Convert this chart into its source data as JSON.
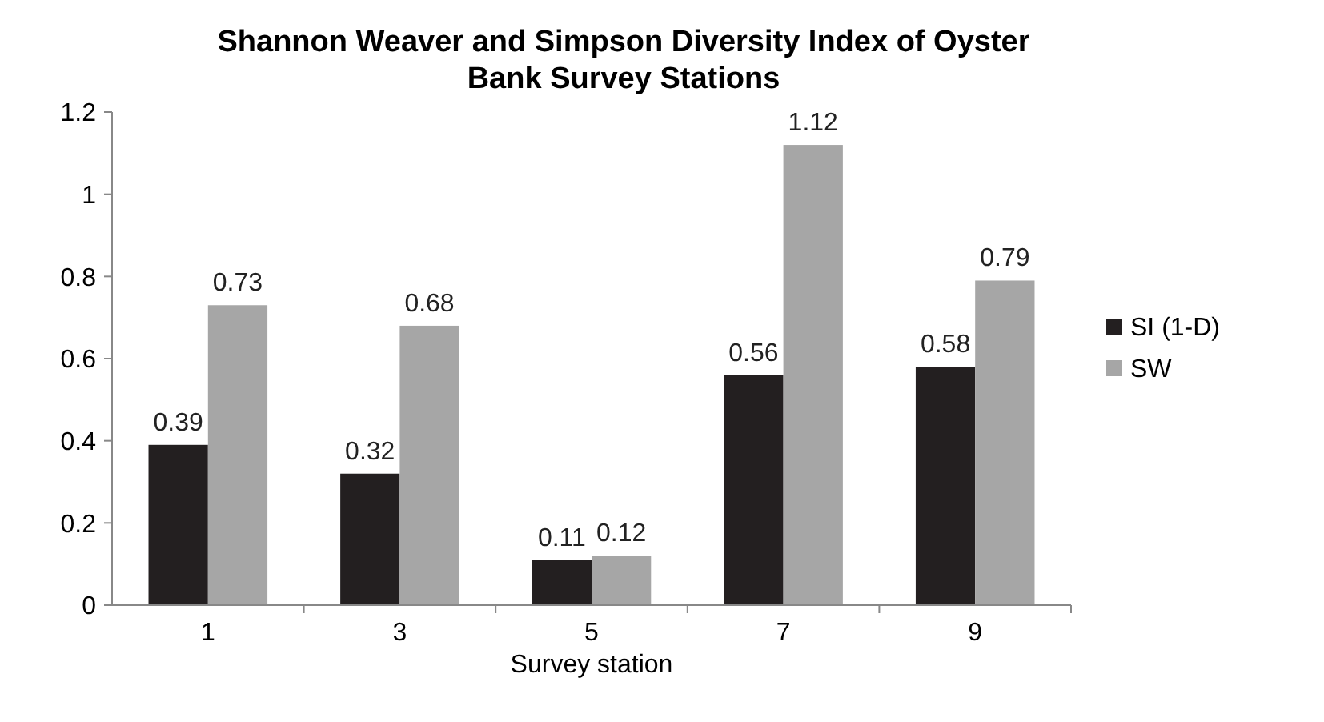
{
  "chart_data": {
    "type": "bar",
    "title": "Shannon Weaver and Simpson Diversity Index of Oyster Bank Survey Stations",
    "xlabel": "Survey station",
    "categories": [
      "1",
      "3",
      "5",
      "7",
      "9"
    ],
    "series": [
      {
        "name": "SI (1-D)",
        "color": "#231f20",
        "values": [
          0.39,
          0.32,
          0.11,
          0.56,
          0.58
        ]
      },
      {
        "name": "SW",
        "color": "#a6a6a6",
        "values": [
          0.73,
          0.68,
          0.12,
          1.12,
          0.79
        ]
      }
    ],
    "ylim": [
      0,
      1.2
    ],
    "yticks": [
      0,
      0.2,
      0.4,
      0.6,
      0.8,
      1,
      1.2
    ],
    "data_labels": true,
    "legend": "right",
    "grid": false
  }
}
